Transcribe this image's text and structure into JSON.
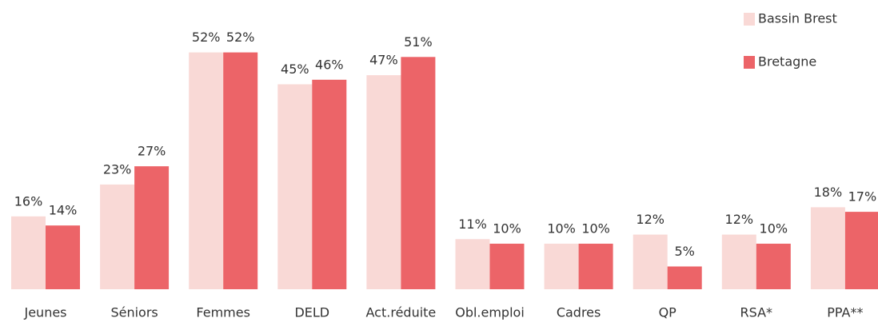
{
  "chart_data": {
    "type": "bar",
    "categories": [
      "Jeunes",
      "Séniors",
      "Femmes",
      "DELD",
      "Act.réduite",
      "Obl.emploi",
      "Cadres",
      "QP",
      "RSA*",
      "PPA**"
    ],
    "series": [
      {
        "name": "Bassin Brest",
        "color": "#f9d9d6",
        "values": [
          16,
          23,
          52,
          45,
          47,
          11,
          10,
          12,
          12,
          18
        ],
        "value_labels": [
          "16%",
          "23%",
          "52%",
          "45%",
          "47%",
          "11%",
          "10%",
          "12%",
          "12%",
          "18%"
        ]
      },
      {
        "name": "Bretagne",
        "color": "#ec6468",
        "values": [
          14,
          27,
          52,
          46,
          51,
          10,
          10,
          5,
          10,
          17
        ],
        "value_labels": [
          "14%",
          "27%",
          "52%",
          "46%",
          "51%",
          "10%",
          "10%",
          "5%",
          "10%",
          "17%"
        ]
      }
    ],
    "legend": "top-right"
  }
}
